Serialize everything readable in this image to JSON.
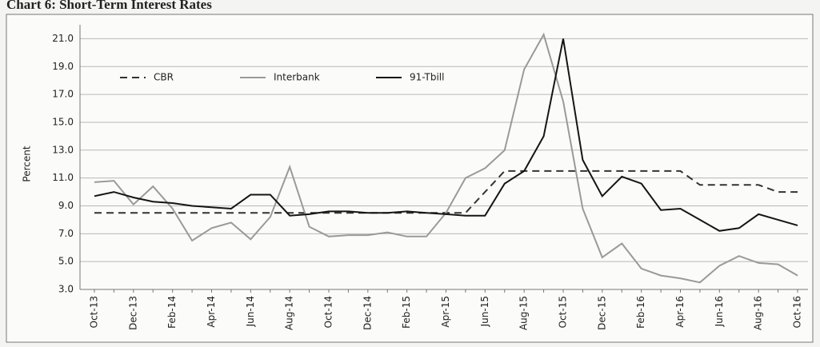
{
  "chart_data": {
    "type": "line",
    "title": "Chart 6: Short-Term Interest Rates",
    "ylabel": "Percent",
    "categories": [
      "Oct-13",
      null,
      "Dec-13",
      null,
      "Feb-14",
      null,
      "Apr-14",
      null,
      "Jun-14",
      null,
      "Aug-14",
      null,
      "Oct-14",
      null,
      "Dec-14",
      null,
      "Feb-15",
      null,
      "Apr-15",
      null,
      "Jun-15",
      null,
      "Aug-15",
      null,
      "Oct-15",
      null,
      "Dec-15",
      null,
      "Feb-16",
      null,
      "Apr-16",
      null,
      "Jun-16",
      null,
      "Aug-16",
      null,
      "Oct-16"
    ],
    "series": [
      {
        "name": "CBR",
        "color": "#333333",
        "dash": true,
        "values": [
          8.5,
          8.5,
          8.5,
          8.5,
          8.5,
          8.5,
          8.5,
          8.5,
          8.5,
          8.5,
          8.5,
          8.5,
          8.5,
          8.5,
          8.5,
          8.5,
          8.5,
          8.5,
          8.5,
          8.5,
          10.0,
          11.5,
          11.5,
          11.5,
          11.5,
          11.5,
          11.5,
          11.5,
          11.5,
          11.5,
          11.5,
          10.5,
          10.5,
          10.5,
          10.5,
          10.0,
          10.0
        ]
      },
      {
        "name": "Interbank",
        "color": "#9a9a9a",
        "dash": false,
        "values": [
          10.7,
          10.8,
          9.1,
          10.4,
          8.8,
          6.5,
          7.4,
          7.8,
          6.6,
          8.2,
          11.8,
          7.5,
          6.8,
          6.9,
          6.9,
          7.1,
          6.8,
          6.8,
          8.5,
          11.0,
          11.7,
          13.0,
          18.8,
          21.3,
          16.5,
          8.8,
          5.3,
          6.3,
          4.5,
          4.0,
          3.8,
          3.5,
          4.7,
          5.4,
          4.9,
          4.8,
          4.0
        ]
      },
      {
        "name": "91-Tbill",
        "color": "#151515",
        "dash": false,
        "values": [
          9.7,
          10.0,
          9.6,
          9.3,
          9.2,
          9.0,
          8.9,
          8.8,
          9.8,
          9.8,
          8.3,
          8.4,
          8.6,
          8.6,
          8.5,
          8.5,
          8.6,
          8.5,
          8.4,
          8.3,
          8.3,
          10.6,
          11.5,
          14.0,
          21.0,
          12.3,
          9.7,
          11.1,
          10.6,
          8.7,
          8.8,
          8.0,
          7.2,
          7.4,
          8.4,
          8.0,
          7.6
        ]
      }
    ],
    "ylim": [
      3,
      22
    ],
    "yticks": [
      {
        "value": 3,
        "label": "3.0"
      },
      {
        "value": 5,
        "label": "5.0"
      },
      {
        "value": 7,
        "label": "7.0"
      },
      {
        "value": 9,
        "label": "9.0"
      },
      {
        "value": 11,
        "label": "11.0"
      },
      {
        "value": 13,
        "label": "13.0"
      },
      {
        "value": 15,
        "label": "15.0"
      },
      {
        "value": 17,
        "label": "17.0"
      },
      {
        "value": 19,
        "label": "19.0"
      },
      {
        "value": 21,
        "label": "21.0"
      }
    ],
    "grid": true,
    "legend": "top-left"
  }
}
